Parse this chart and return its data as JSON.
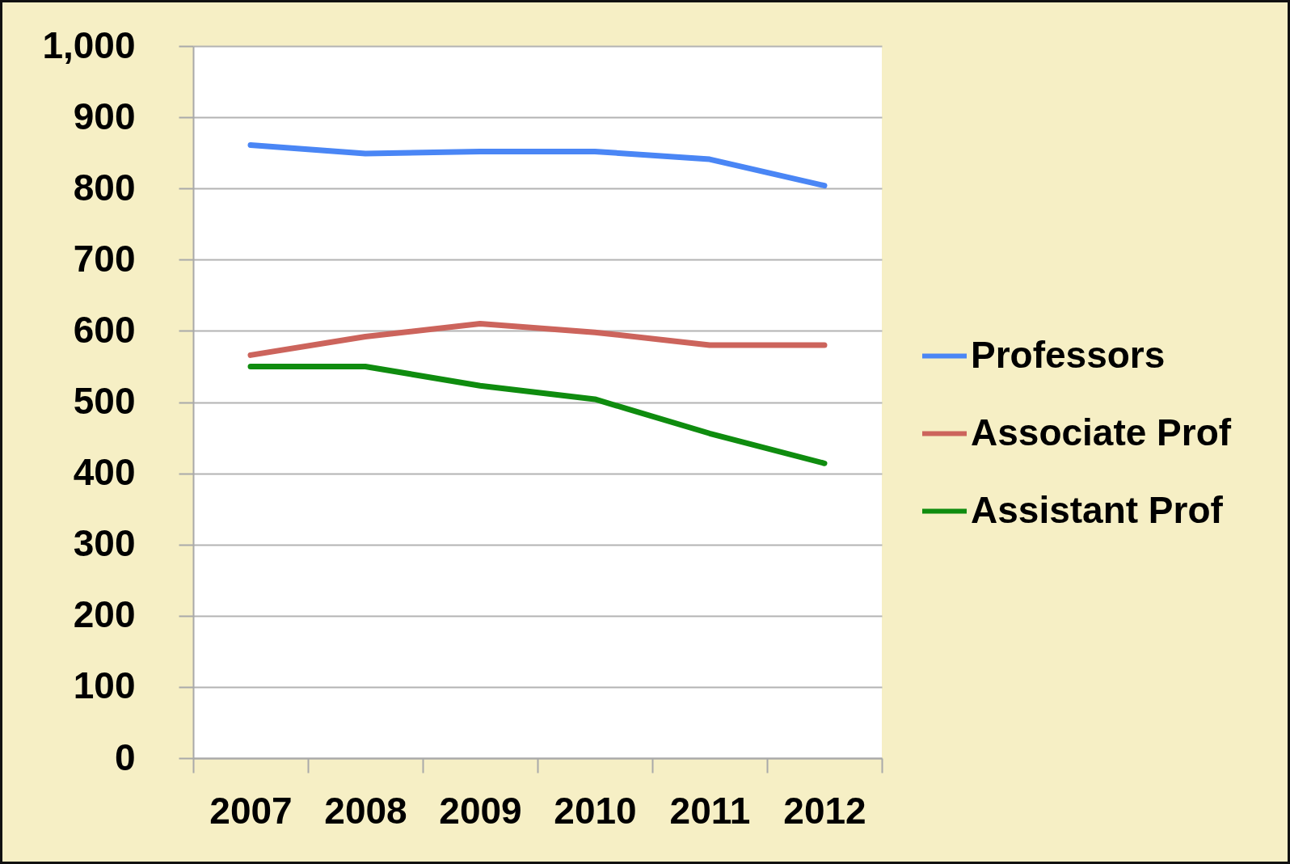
{
  "chart_data": {
    "type": "line",
    "categories": [
      "2007",
      "2008",
      "2009",
      "2010",
      "2011",
      "2012"
    ],
    "series": [
      {
        "name": "Professors",
        "color": "#4a86f5",
        "values": [
          861,
          849,
          852,
          852,
          841,
          804
        ]
      },
      {
        "name": "Associate Prof",
        "color": "#cc645c",
        "values": [
          566,
          592,
          610,
          598,
          580,
          580
        ]
      },
      {
        "name": "Assistant Prof",
        "color": "#0f8c0f",
        "values": [
          550,
          550,
          523,
          504,
          456,
          414
        ]
      }
    ],
    "ylim": [
      0,
      1000
    ],
    "yticks": [
      0,
      100,
      200,
      300,
      400,
      500,
      600,
      700,
      800,
      900,
      {
        "value": 1000,
        "label": "1,000"
      }
    ],
    "grid": "y",
    "legend": "right"
  }
}
